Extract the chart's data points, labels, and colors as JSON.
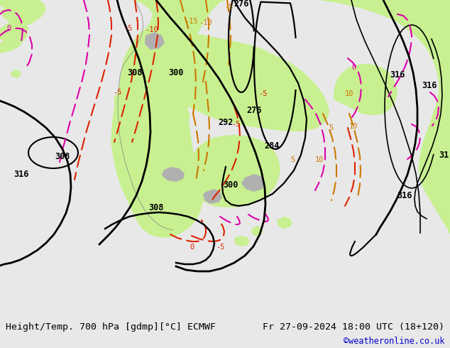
{
  "title_left": "Height/Temp. 700 hPa [gdmp][°C] ECMWF",
  "title_right": "Fr 27-09-2024 18:00 UTC (18+120)",
  "credit": "©weatheronline.co.uk",
  "bg_land_color": "#c8f090",
  "bg_sea_color": "#d8d8d8",
  "bg_relief_color": "#a8a8a8",
  "bottom_bar_color": "#e8e8e8",
  "font_mono": "monospace",
  "credit_color": "#0000cc",
  "black_contour_color": "#000000",
  "red_temp_color": "#dd2200",
  "orange_temp_color": "#cc7700",
  "pink_temp_color": "#dd00aa",
  "black_dashed_color": "#111111"
}
